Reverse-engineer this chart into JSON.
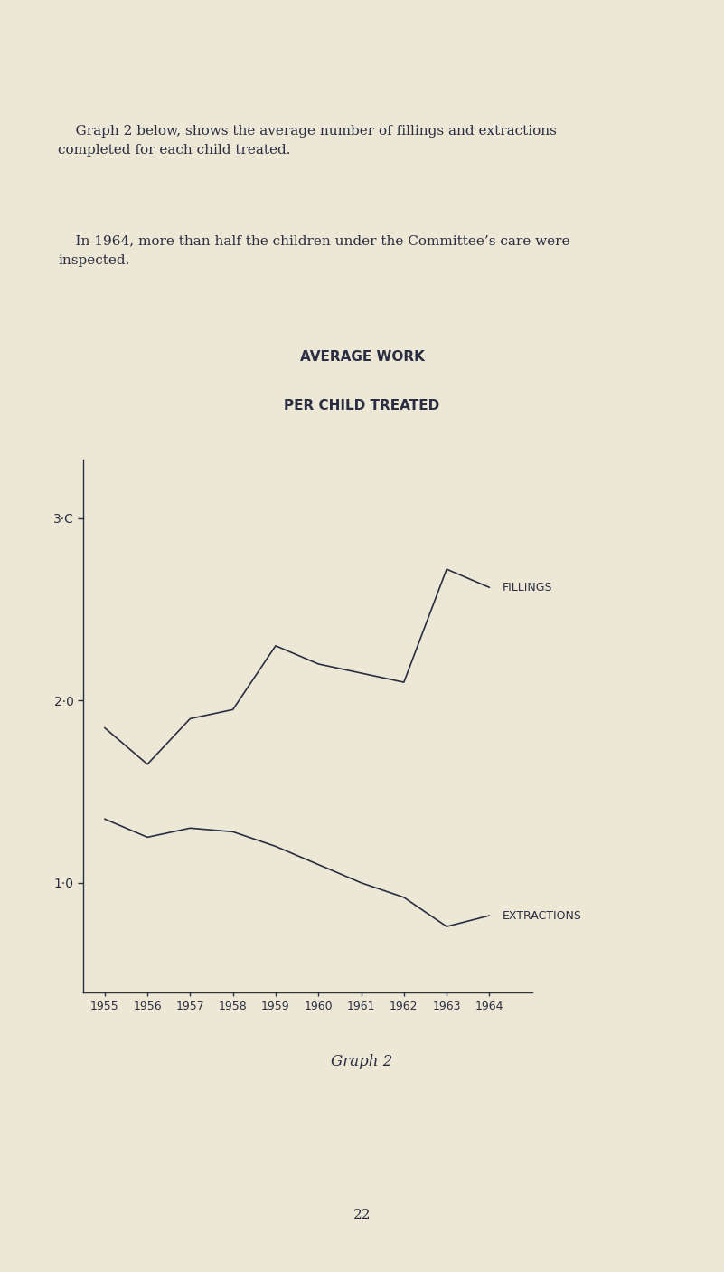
{
  "years": [
    1955,
    1956,
    1957,
    1958,
    1959,
    1960,
    1961,
    1962,
    1963,
    1964
  ],
  "fillings": [
    1.85,
    1.65,
    1.9,
    1.95,
    2.3,
    2.2,
    2.15,
    2.1,
    2.72,
    2.62
  ],
  "extractions": [
    1.35,
    1.25,
    1.3,
    1.28,
    1.2,
    1.1,
    1.0,
    0.92,
    0.76,
    0.82
  ],
  "title_line1": "AVERAGE WORK",
  "title_line2": "PER CHILD TREATED",
  "label_fillings": "FILLINGS",
  "label_extractions": "EXTRACTIONS",
  "yticks": [
    1.0,
    2.0,
    3.0
  ],
  "ytick_labels": [
    "1·0",
    "2·0",
    "3·C"
  ],
  "ylim": [
    0.4,
    3.4
  ],
  "background_color": "#EDE8D5",
  "line_color": "#2b2d42",
  "text_color": "#2b2d42",
  "graph_label": "Graph 2",
  "page_number": "22",
  "body_text_para1": "    Graph 2 below, shows the average number of fillings and extractions\ncompleted for each child treated.",
  "body_text_para2": "    In 1964, more than half the children under the Committee’s care were\ninspected."
}
